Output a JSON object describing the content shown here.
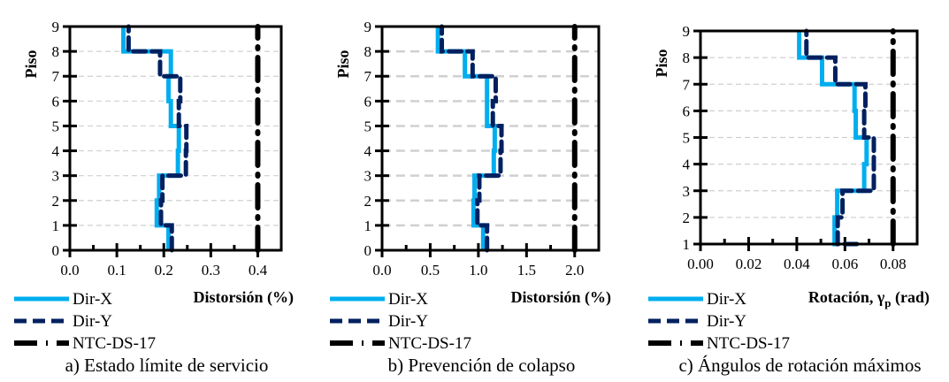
{
  "colors": {
    "dirx": "#00aeef",
    "diry": "#002060",
    "ntc": "#000000",
    "grid": "#d0d0d0"
  },
  "chart_data": [
    {
      "type": "line",
      "ylabel": "Piso",
      "xlabel": "Distorsión (%)",
      "caption": "a) Estado límite de servicio",
      "xlim": [
        0,
        0.45
      ],
      "ylim": [
        0,
        9
      ],
      "xticks": [
        "0.0",
        "0.1",
        "0.2",
        "0.3",
        "0.4"
      ],
      "xtick_values": [
        0,
        0.1,
        0.2,
        0.3,
        0.4
      ],
      "yticks": [
        "0",
        "1",
        "2",
        "3",
        "4",
        "5",
        "6",
        "7",
        "8",
        "9"
      ],
      "ytick_values": [
        0,
        1,
        2,
        3,
        4,
        5,
        6,
        7,
        8,
        9
      ],
      "grid": "horizontal-dashed",
      "series": [
        {
          "name": "Dir-X",
          "style": "solid",
          "story_values": [
            0.21,
            0.185,
            0.19,
            0.23,
            0.232,
            0.215,
            0.21,
            0.215,
            0.114
          ]
        },
        {
          "name": "Dir-Y",
          "style": "dashed",
          "story_values": [
            0.217,
            0.194,
            0.197,
            0.247,
            0.248,
            0.232,
            0.235,
            0.192,
            0.125
          ]
        },
        {
          "name": "NTC-DS-17",
          "style": "dash-dot",
          "constant": 0.4
        }
      ]
    },
    {
      "type": "line",
      "ylabel": "Piso",
      "xlabel": "Distorsión (%)",
      "caption": "b) Prevención de colapso",
      "xlim": [
        0,
        2.25
      ],
      "ylim": [
        0,
        9
      ],
      "xticks": [
        "0.0",
        "0.5",
        "1.0",
        "1.5",
        "2.0"
      ],
      "xtick_values": [
        0,
        0.5,
        1,
        1.5,
        2
      ],
      "yticks": [
        "0",
        "1",
        "2",
        "3",
        "4",
        "5",
        "6",
        "7",
        "8",
        "9"
      ],
      "ytick_values": [
        0,
        1,
        2,
        3,
        4,
        5,
        6,
        7,
        8,
        9
      ],
      "grid": "horizontal-dashed",
      "series": [
        {
          "name": "Dir-X",
          "style": "solid",
          "story_values": [
            1.05,
            0.95,
            0.96,
            1.16,
            1.17,
            1.09,
            1.09,
            0.86,
            0.58
          ]
        },
        {
          "name": "Dir-Y",
          "style": "dashed",
          "story_values": [
            1.09,
            0.99,
            1.01,
            1.23,
            1.24,
            1.15,
            1.18,
            0.94,
            0.62
          ]
        },
        {
          "name": "NTC-DS-17",
          "style": "dash-dot",
          "constant": 2.0
        }
      ]
    },
    {
      "type": "line",
      "ylabel": "Piso",
      "xlabel": "Rotación, γ",
      "xlabel_sub": "p",
      "xlabel_unit": " (rad)",
      "caption": "c) Ángulos de rotación máximos",
      "xlim": [
        0,
        0.09
      ],
      "ylim": [
        1,
        9
      ],
      "xticks": [
        "0.00",
        "0.02",
        "0.04",
        "0.06",
        "0.08"
      ],
      "xtick_values": [
        0,
        0.02,
        0.04,
        0.06,
        0.08
      ],
      "yticks": [
        "1",
        "2",
        "3",
        "4",
        "5",
        "6",
        "7",
        "8",
        "9"
      ],
      "ytick_values": [
        1,
        2,
        3,
        4,
        5,
        6,
        7,
        8,
        9
      ],
      "grid": "horizontal-dashed",
      "series": [
        {
          "name": "Dir-X",
          "style": "solid",
          "base_value": 0.056,
          "story_values": [
            0.0557,
            0.0568,
            0.068,
            0.069,
            0.0645,
            0.064,
            0.0505,
            0.041
          ]
        },
        {
          "name": "Dir-Y",
          "style": "dashed",
          "base_value": 0.065,
          "story_values": [
            0.057,
            0.059,
            0.072,
            0.072,
            0.068,
            0.0685,
            0.056,
            0.044
          ]
        },
        {
          "name": "NTC-DS-17",
          "style": "dash-dot",
          "constant": 0.08
        }
      ]
    }
  ]
}
